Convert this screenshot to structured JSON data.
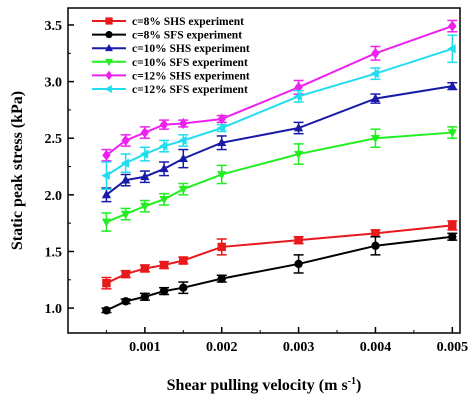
{
  "chart_data": {
    "type": "line",
    "xlabel": "Shear pulling velocity (m s",
    "xlabel_sup": "-1",
    "xlabel_close": ")",
    "ylabel": "Static peak stress (kPa)",
    "xlim": [
      0,
      0.0051
    ],
    "ylim": [
      0.78,
      3.65
    ],
    "xticks": [
      0.001,
      0.002,
      0.003,
      0.004,
      0.005
    ],
    "xtick_labels": [
      "0.001",
      "0.002",
      "0.003",
      "0.004",
      "0.005"
    ],
    "yticks": [
      1.0,
      1.5,
      2.0,
      2.5,
      3.0,
      3.5
    ],
    "ytick_labels": [
      "1.0",
      "1.5",
      "2.0",
      "2.5",
      "3.0",
      "3.5"
    ],
    "legend_position": "top-left",
    "x": [
      0.0005,
      0.00075,
      0.001,
      0.00125,
      0.0015,
      0.002,
      0.003,
      0.004,
      0.005
    ],
    "series": [
      {
        "name": "c=8% SHS experiment",
        "color": "#e8191c",
        "marker": "square",
        "values": [
          1.22,
          1.3,
          1.35,
          1.38,
          1.42,
          1.54,
          1.6,
          1.66,
          1.73
        ],
        "errors": [
          0.05,
          0.03,
          0.03,
          0.03,
          0.03,
          0.07,
          0.03,
          0.03,
          0.04
        ]
      },
      {
        "name": "c=8% SFS experiment",
        "color": "#000000",
        "marker": "circle",
        "values": [
          0.98,
          1.06,
          1.1,
          1.15,
          1.18,
          1.26,
          1.39,
          1.55,
          1.63
        ],
        "errors": [
          0.02,
          0.02,
          0.03,
          0.03,
          0.05,
          0.03,
          0.08,
          0.08,
          0.03
        ]
      },
      {
        "name": "c=10% SHS experiment",
        "color": "#1a1aa8",
        "marker": "triangle-up",
        "values": [
          2.0,
          2.13,
          2.16,
          2.23,
          2.32,
          2.46,
          2.59,
          2.85,
          2.96
        ],
        "errors": [
          0.06,
          0.05,
          0.05,
          0.06,
          0.08,
          0.06,
          0.05,
          0.04,
          0.03
        ]
      },
      {
        "name": "c=10% SFS experiment",
        "color": "#22ee22",
        "marker": "triangle-down",
        "values": [
          1.76,
          1.83,
          1.9,
          1.96,
          2.05,
          2.18,
          2.36,
          2.5,
          2.55
        ],
        "errors": [
          0.08,
          0.05,
          0.05,
          0.05,
          0.05,
          0.08,
          0.09,
          0.08,
          0.05
        ]
      },
      {
        "name": "c=12% SHS experiment",
        "color": "#ee22ee",
        "marker": "diamond",
        "values": [
          2.35,
          2.48,
          2.55,
          2.62,
          2.63,
          2.67,
          2.95,
          3.25,
          3.49
        ],
        "errors": [
          0.05,
          0.05,
          0.05,
          0.04,
          0.03,
          0.03,
          0.06,
          0.06,
          0.05
        ]
      },
      {
        "name": "c=12% SFS experiment",
        "color": "#22ddee",
        "marker": "triangle-left",
        "values": [
          2.17,
          2.28,
          2.36,
          2.43,
          2.48,
          2.59,
          2.87,
          3.07,
          3.29
        ],
        "errors": [
          0.12,
          0.08,
          0.06,
          0.05,
          0.05,
          0.03,
          0.05,
          0.05,
          0.12
        ]
      }
    ]
  }
}
